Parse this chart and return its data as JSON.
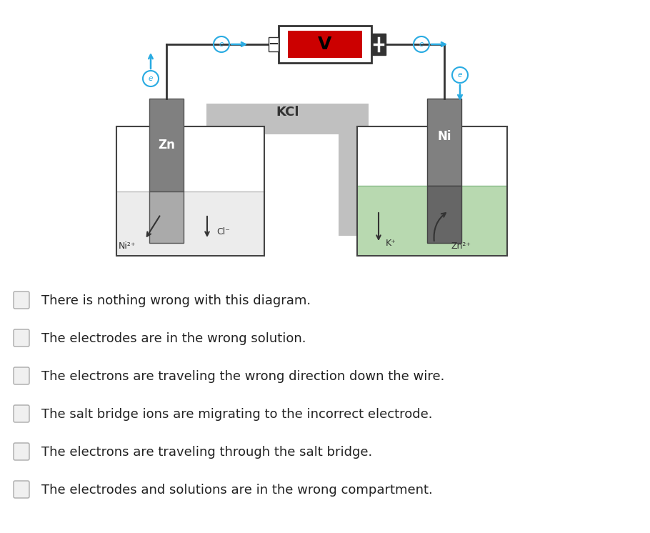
{
  "bg_color": "#ffffff",
  "options": [
    "There is nothing wrong with this diagram.",
    "The electrodes are in the wrong solution.",
    "The electrons are traveling the wrong direction down the wire.",
    "The salt bridge ions are migrating to the incorrect electrode.",
    "The electrons are traveling through the salt bridge.",
    "The electrodes and solutions are in the wrong compartment."
  ],
  "option_font_size": 13,
  "diagram": {
    "wire_color": "#333333",
    "electron_color": "#29abe2",
    "salt_bridge_color": "#c0c0c0",
    "voltmeter_bg": "#cc0000",
    "left_solution_color": "#f0f0f0",
    "right_solution_color": "#b8d9b0"
  }
}
